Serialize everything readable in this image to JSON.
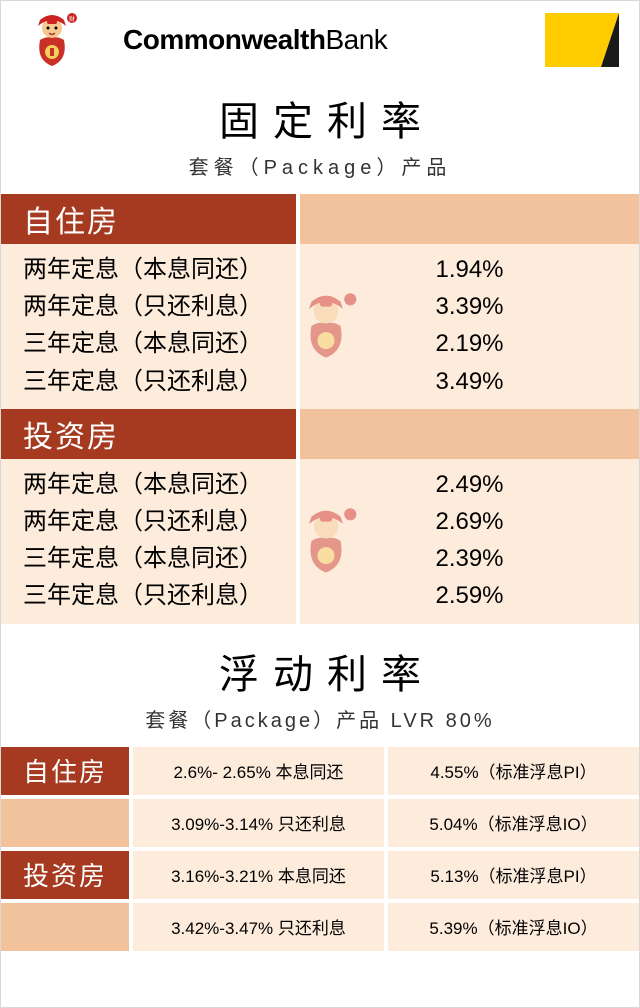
{
  "colors": {
    "brand": "#a63a21",
    "peach": "#f2c29d",
    "light": "#fdecdc",
    "cba_yellow": "#ffcc00",
    "cba_black": "#1a1a1a"
  },
  "header": {
    "bank_bold": "Commonwealth",
    "bank_light": "Bank"
  },
  "fixed": {
    "title": "固定利率",
    "subtitle": "套餐（Package）产品",
    "groups": [
      {
        "label": "自住房",
        "rows": [
          {
            "label": "两年定息（本息同还）",
            "rate": "1.94%"
          },
          {
            "label": "两年定息（只还利息）",
            "rate": "3.39%"
          },
          {
            "label": "三年定息（本息同还）",
            "rate": "2.19%"
          },
          {
            "label": "三年定息（只还利息）",
            "rate": "3.49%"
          }
        ]
      },
      {
        "label": "投资房",
        "rows": [
          {
            "label": "两年定息（本息同还）",
            "rate": "2.49%"
          },
          {
            "label": "两年定息（只还利息）",
            "rate": "2.69%"
          },
          {
            "label": "三年定息（本息同还）",
            "rate": "2.39%"
          },
          {
            "label": "三年定息（只还利息）",
            "rate": "2.59%"
          }
        ]
      }
    ]
  },
  "variable": {
    "title": "浮动利率",
    "subtitle": "套餐（Package）产品  LVR 80%",
    "groups": [
      {
        "label": "自住房",
        "rows": [
          {
            "c1": "2.6%- 2.65% 本息同还",
            "c2": "4.55%（标准浮息PI）"
          },
          {
            "c1": "3.09%-3.14% 只还利息",
            "c2": "5.04%（标准浮息IO）"
          }
        ]
      },
      {
        "label": "投资房",
        "rows": [
          {
            "c1": "3.16%-3.21% 本息同还",
            "c2": "5.13%（标准浮息PI）"
          },
          {
            "c1": "3.42%-3.47% 只还利息",
            "c2": "5.39%（标准浮息IO）"
          }
        ]
      }
    ]
  }
}
